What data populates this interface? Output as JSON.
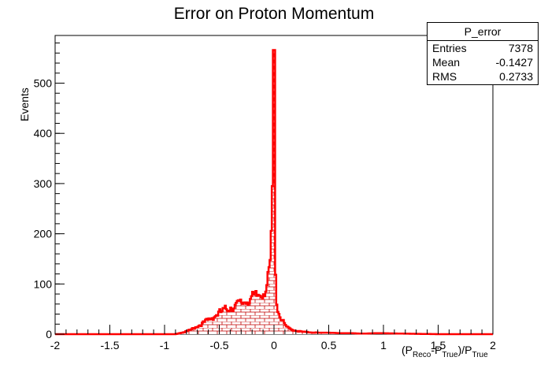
{
  "chart_data": {
    "type": "bar",
    "title": "Error on Proton Momentum",
    "ylabel": "Events",
    "xlabel": {
      "open": "(P",
      "sub1": "Reco",
      "mid": "-P",
      "sub2": "True",
      "close": ")/P",
      "sub3": "True"
    },
    "xlim": [
      -2,
      2
    ],
    "ylim": [
      0,
      595
    ],
    "x_ticks": [
      "-2",
      "-1.5",
      "-1",
      "-0.5",
      "0",
      "0.5",
      "1",
      "1.5",
      "2"
    ],
    "y_ticks": [
      "0",
      "100",
      "200",
      "300",
      "400",
      "500"
    ],
    "histogram_color": "#ff0000",
    "fill_pattern": "red bricks",
    "points": [
      [
        -1.0,
        0
      ],
      [
        -0.9,
        0
      ],
      [
        -0.86,
        2
      ],
      [
        -0.82,
        4
      ],
      [
        -0.78,
        7
      ],
      [
        -0.74,
        11
      ],
      [
        -0.7,
        16
      ],
      [
        -0.66,
        20
      ],
      [
        -0.62,
        26
      ],
      [
        -0.58,
        31
      ],
      [
        -0.54,
        36
      ],
      [
        -0.5,
        42
      ],
      [
        -0.46,
        47
      ],
      [
        -0.42,
        52
      ],
      [
        -0.38,
        55
      ],
      [
        -0.34,
        58
      ],
      [
        -0.3,
        62
      ],
      [
        -0.26,
        66
      ],
      [
        -0.22,
        70
      ],
      [
        -0.18,
        73
      ],
      [
        -0.14,
        78
      ],
      [
        -0.1,
        84
      ],
      [
        -0.08,
        90
      ],
      [
        -0.06,
        98
      ],
      [
        -0.045,
        120
      ],
      [
        -0.035,
        140
      ],
      [
        -0.025,
        180
      ],
      [
        -0.018,
        260
      ],
      [
        -0.012,
        330
      ],
      [
        -0.006,
        420
      ],
      [
        -0.002,
        566
      ],
      [
        0.004,
        420
      ],
      [
        0.01,
        210
      ],
      [
        0.016,
        100
      ],
      [
        0.022,
        70
      ],
      [
        0.03,
        55
      ],
      [
        0.04,
        45
      ],
      [
        0.05,
        38
      ],
      [
        0.07,
        30
      ],
      [
        0.09,
        22
      ],
      [
        0.11,
        16
      ],
      [
        0.13,
        12
      ],
      [
        0.16,
        9
      ],
      [
        0.2,
        7
      ],
      [
        0.25,
        5
      ],
      [
        0.3,
        4
      ],
      [
        0.4,
        3
      ],
      [
        0.5,
        3
      ],
      [
        0.6,
        2
      ],
      [
        0.7,
        2
      ],
      [
        0.8,
        1
      ],
      [
        0.95,
        2
      ],
      [
        1.2,
        1
      ],
      [
        1.5,
        0
      ],
      [
        2.0,
        0
      ]
    ]
  },
  "stats": {
    "name": "P_error",
    "rows": [
      {
        "label": "Entries",
        "value": "7378"
      },
      {
        "label": "Mean",
        "value": "-0.1427"
      },
      {
        "label": "RMS",
        "value": "0.2733"
      }
    ]
  }
}
